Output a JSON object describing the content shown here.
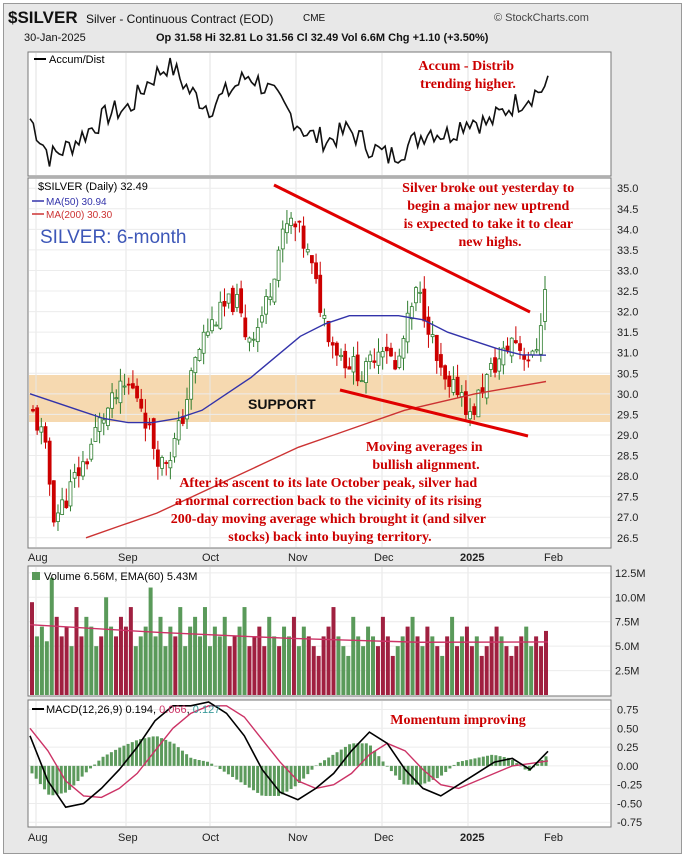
{
  "header": {
    "symbol": "$SILVER",
    "name": "Silver - Continuous Contract (EOD)",
    "exchange": "CME",
    "copyright": "© StockCharts.com",
    "date": "30-Jan-2025",
    "quote": "Op 31.58  Hi 32.81  Lo 31.56  Cl 32.49  Vol 6.6M  Chg +1.10 (+3.50%)"
  },
  "panels": {
    "accum": {
      "label": "Accum/Dist"
    },
    "price": {
      "label": "$SILVER (Daily) 32.49",
      "ma50": "MA(50) 30.94",
      "ma200": "MA(200) 30.30",
      "subtitle": "SILVER: 6-month"
    },
    "volume": {
      "label": "Volume 6.56M, EMA(60) 5.43M"
    },
    "macd": {
      "label_pre": "MACD(12,26,9) 0.194, ",
      "label_a": "0.066",
      "label_sep": ", ",
      "label_b": "0.127"
    }
  },
  "annotations": {
    "accum_note": [
      "Accum - Distrib",
      "trending higher."
    ],
    "breakout_note": [
      "Silver broke out yesterday to",
      "begin a major new uptrend",
      "is expected to take it to clear",
      "new highs."
    ],
    "support": "SUPPORT",
    "ma_note": [
      "Moving averages in",
      "bullish  alignment."
    ],
    "correction_note": [
      "After its ascent to its late October peak, silver had",
      "a normal correction back to the vicinity of its rising",
      "200-day moving average which brought it (and silver",
      "stocks) back into buying territory."
    ],
    "momentum_note": "Momentum improving"
  },
  "colors": {
    "up": "#2e7d2e",
    "down": "#cc0000",
    "ma50": "#3333aa",
    "ma200": "#cc3333",
    "support_band": "#f6d9b0",
    "annotation": "#cc0000",
    "subtitle": "#3d57b8",
    "vol_up": "#5a9a5a",
    "vol_down": "#a02040",
    "macd_line": "#000000",
    "signal_line": "#cc3366",
    "histogram": "#5c9a5c"
  },
  "chart_data": [
    {
      "type": "line",
      "title": "Accum/Dist",
      "x": [
        "Aug",
        "Sep",
        "Oct",
        "Nov",
        "Dec",
        "2025",
        "Feb"
      ],
      "trend": "trending higher"
    },
    {
      "type": "candlestick",
      "title": "$SILVER (Daily) 32.49",
      "xlabels": [
        "Aug",
        "Sep",
        "Oct",
        "Nov",
        "Dec",
        "2025",
        "Feb"
      ],
      "yticks": [
        26.5,
        27.0,
        27.5,
        28.0,
        28.5,
        29.0,
        29.5,
        30.0,
        30.5,
        31.0,
        31.5,
        32.0,
        32.5,
        33.0,
        33.5,
        34.0,
        34.5,
        35.0
      ],
      "ylim": [
        26.3,
        35.2
      ],
      "close_path": [
        29.5,
        28.9,
        27.0,
        27.4,
        28.0,
        28.4,
        29.2,
        29.6,
        30.0,
        30.2,
        29.9,
        29.0,
        28.3,
        28.6,
        29.4,
        30.6,
        31.4,
        31.8,
        32.1,
        32.3,
        31.4,
        31.6,
        32.3,
        33.5,
        34.2,
        33.9,
        33.2,
        32.1,
        31.3,
        30.9,
        30.7,
        30.4,
        31.0,
        31.3,
        30.5,
        31.6,
        32.5,
        31.8,
        30.6,
        30.0,
        30.2,
        29.4,
        30.1,
        30.6,
        30.9,
        31.4,
        31.0,
        30.8,
        32.49
      ],
      "series": [
        {
          "name": "MA(50) 30.94",
          "values": [
            30.0,
            29.8,
            29.6,
            29.4,
            29.3,
            29.3,
            29.4,
            29.6,
            30.0,
            30.4,
            30.9,
            31.4,
            31.7,
            31.9,
            31.9,
            31.9,
            31.8,
            31.5,
            31.3,
            31.1,
            30.95,
            30.94
          ]
        },
        {
          "name": "MA(200) 30.30",
          "values": [
            26.5,
            26.8,
            27.1,
            27.5,
            27.9,
            28.3,
            28.7,
            29.0,
            29.3,
            29.6,
            29.8,
            30.0,
            30.15,
            30.3
          ]
        }
      ],
      "support_zone": [
        29.1,
        30.2
      ],
      "annotations": [
        "SUPPORT",
        "SILVER: 6-month"
      ]
    },
    {
      "type": "bar",
      "title": "Volume 6.56M, EMA(60) 5.43M",
      "yticks": [
        "2.5M",
        "5.0M",
        "7.5M",
        "10.0M",
        "12.5M"
      ],
      "ylim": [
        0,
        13
      ],
      "values": [
        9.5,
        6,
        7,
        5.5,
        12,
        8,
        6,
        7,
        5,
        9,
        6,
        8,
        7,
        5,
        6,
        10,
        7,
        6,
        8,
        7,
        9,
        5,
        6,
        7,
        11,
        6,
        8,
        5,
        7,
        6,
        9,
        5,
        7,
        8,
        6,
        9,
        5,
        7,
        6,
        8,
        5,
        6,
        7,
        9,
        5,
        6,
        7,
        5,
        8,
        6,
        5,
        7,
        6,
        8,
        5,
        7,
        6,
        5,
        4,
        6,
        7,
        9,
        6,
        5,
        4,
        8,
        6,
        5,
        7,
        6,
        5,
        8,
        6,
        4,
        5,
        6,
        7,
        8,
        6,
        5,
        7,
        6,
        5,
        4,
        6,
        8,
        5,
        6,
        7,
        5,
        6,
        4,
        5,
        6,
        7,
        6,
        5,
        4,
        5,
        6,
        7,
        5,
        6,
        5,
        6.56
      ],
      "ema": [
        7.2,
        6.4,
        5.8,
        5.4,
        5.43
      ]
    },
    {
      "type": "line",
      "title": "MACD(12,26,9)",
      "yticks": [
        "-0.75",
        "-0.50",
        "-0.25",
        "0.00",
        "0.25",
        "0.50",
        "0.75"
      ],
      "ylim": [
        -0.8,
        0.85
      ],
      "series": [
        {
          "name": "0.194",
          "values": [
            0.4,
            -0.2,
            -0.55,
            -0.5,
            -0.3,
            -0.05,
            0.25,
            0.6,
            0.8,
            0.8,
            0.85,
            0.7,
            0.4,
            -0.05,
            -0.35,
            -0.45,
            -0.3,
            -0.1,
            0.2,
            0.45,
            0.3,
            -0.05,
            -0.3,
            -0.4,
            -0.25,
            -0.1,
            0.05,
            0.1,
            -0.05,
            0.194
          ]
        },
        {
          "name": "0.066",
          "values": [
            0.5,
            0.2,
            -0.2,
            -0.4,
            -0.42,
            -0.3,
            -0.1,
            0.2,
            0.5,
            0.7,
            0.8,
            0.8,
            0.65,
            0.35,
            0.05,
            -0.2,
            -0.3,
            -0.25,
            -0.1,
            0.15,
            0.3,
            0.2,
            -0.05,
            -0.25,
            -0.3,
            -0.2,
            -0.1,
            0.0,
            0.03,
            0.066
          ]
        },
        {
          "name": "0.127",
          "values": [
            -0.1,
            -0.4,
            -0.35,
            -0.1,
            0.12,
            0.25,
            0.35,
            0.4,
            0.3,
            0.1,
            0.05,
            -0.1,
            -0.25,
            -0.4,
            -0.4,
            -0.25,
            0.0,
            0.15,
            0.3,
            0.3,
            0.0,
            -0.25,
            -0.25,
            -0.15,
            0.05,
            0.1,
            0.15,
            0.1,
            -0.08,
            0.127
          ]
        }
      ]
    }
  ]
}
